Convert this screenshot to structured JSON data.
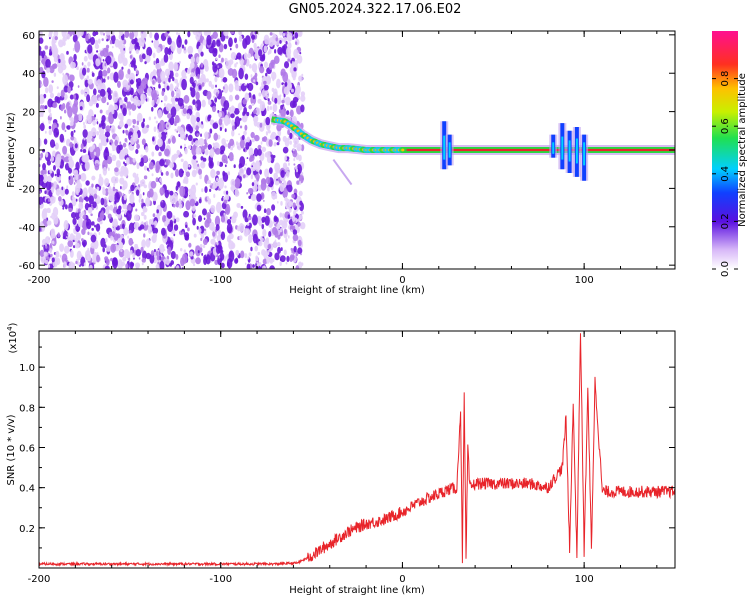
{
  "title": "GN05.2024.322.17.06.E02",
  "colors": {
    "snr_line": "#e8242a",
    "scatter": "#7a28d8",
    "track_core": "#e8242a",
    "track_halo": "#28d840"
  },
  "chart_data": [
    {
      "type": "heatmap",
      "xlabel": "Height of straight line (km)",
      "ylabel": "Frequency (Hz)",
      "xlim": [
        -200,
        150
      ],
      "ylim": [
        -62,
        62
      ],
      "xticks": [
        "-200",
        "-100",
        "0",
        "100"
      ],
      "xtick_values": [
        -200,
        -100,
        0,
        100
      ],
      "yticks": [
        "60",
        "40",
        "20",
        "0",
        "-20",
        "-40",
        "-60"
      ],
      "ytick_values": [
        60,
        40,
        20,
        0,
        -20,
        -40,
        -60
      ],
      "noise_region_x": [
        -200,
        -58
      ],
      "track": {
        "x": [
          -72,
          -65,
          -60,
          -55,
          -50,
          -45,
          -40,
          -35,
          -30,
          -25,
          -20,
          -15,
          -10,
          0,
          10,
          20,
          25,
          30,
          150
        ],
        "y": [
          16,
          15,
          12,
          8,
          5,
          3,
          2,
          1,
          1,
          0.5,
          0,
          0,
          0,
          0,
          0,
          0,
          0,
          0,
          0
        ]
      },
      "bursts": [
        {
          "x": 23,
          "ymin": -10,
          "ymax": 15
        },
        {
          "x": 26,
          "ymin": -8,
          "ymax": 8
        },
        {
          "x": 83,
          "ymin": -4,
          "ymax": 8
        },
        {
          "x": 88,
          "ymin": -10,
          "ymax": 14
        },
        {
          "x": 92,
          "ymin": -12,
          "ymax": 10
        },
        {
          "x": 96,
          "ymin": -14,
          "ymax": 12
        },
        {
          "x": 100,
          "ymin": -16,
          "ymax": 8
        }
      ],
      "colorbar": {
        "label": "Normalized spectral amplitude",
        "range": [
          0,
          1
        ],
        "ticks": [
          "0.0",
          "0.2",
          "0.4",
          "0.6",
          "0.8"
        ],
        "tick_values": [
          0.0,
          0.2,
          0.4,
          0.6,
          0.8
        ]
      }
    },
    {
      "type": "line",
      "xlabel": "Height of straight line (km)",
      "ylabel": "SNR (10 * v/v)",
      "y_multiplier": "(x10",
      "y_multiplier_exp": "4",
      "y_multiplier_close": ")",
      "xlim": [
        -200,
        150
      ],
      "ylim": [
        0,
        1.18
      ],
      "xticks": [
        "-200",
        "-100",
        "0",
        "100"
      ],
      "xtick_values": [
        -200,
        -100,
        0,
        100
      ],
      "yticks": [
        "0.2",
        "0.4",
        "0.6",
        "0.8",
        "1.0"
      ],
      "ytick_values": [
        0.2,
        0.4,
        0.6,
        0.8,
        1.0
      ],
      "series": [
        {
          "x": [
            -200,
            -150,
            -100,
            -70,
            -58,
            -50,
            -40,
            -30,
            -20,
            -10,
            0,
            10,
            20,
            25,
            30,
            32,
            33,
            34,
            35,
            36,
            37,
            40,
            50,
            60,
            70,
            80,
            88,
            90,
            92,
            94,
            96,
            98,
            100,
            102,
            104,
            106,
            110,
            120,
            130,
            140,
            150
          ],
          "y": [
            0.02,
            0.02,
            0.02,
            0.02,
            0.025,
            0.06,
            0.12,
            0.18,
            0.22,
            0.24,
            0.28,
            0.33,
            0.37,
            0.39,
            0.4,
            0.8,
            0.05,
            0.85,
            0.04,
            0.6,
            0.4,
            0.42,
            0.42,
            0.42,
            0.42,
            0.4,
            0.5,
            0.75,
            0.1,
            0.82,
            0.05,
            1.18,
            0.08,
            0.9,
            0.1,
            0.93,
            0.38,
            0.38,
            0.38,
            0.38,
            0.38
          ]
        }
      ]
    }
  ]
}
